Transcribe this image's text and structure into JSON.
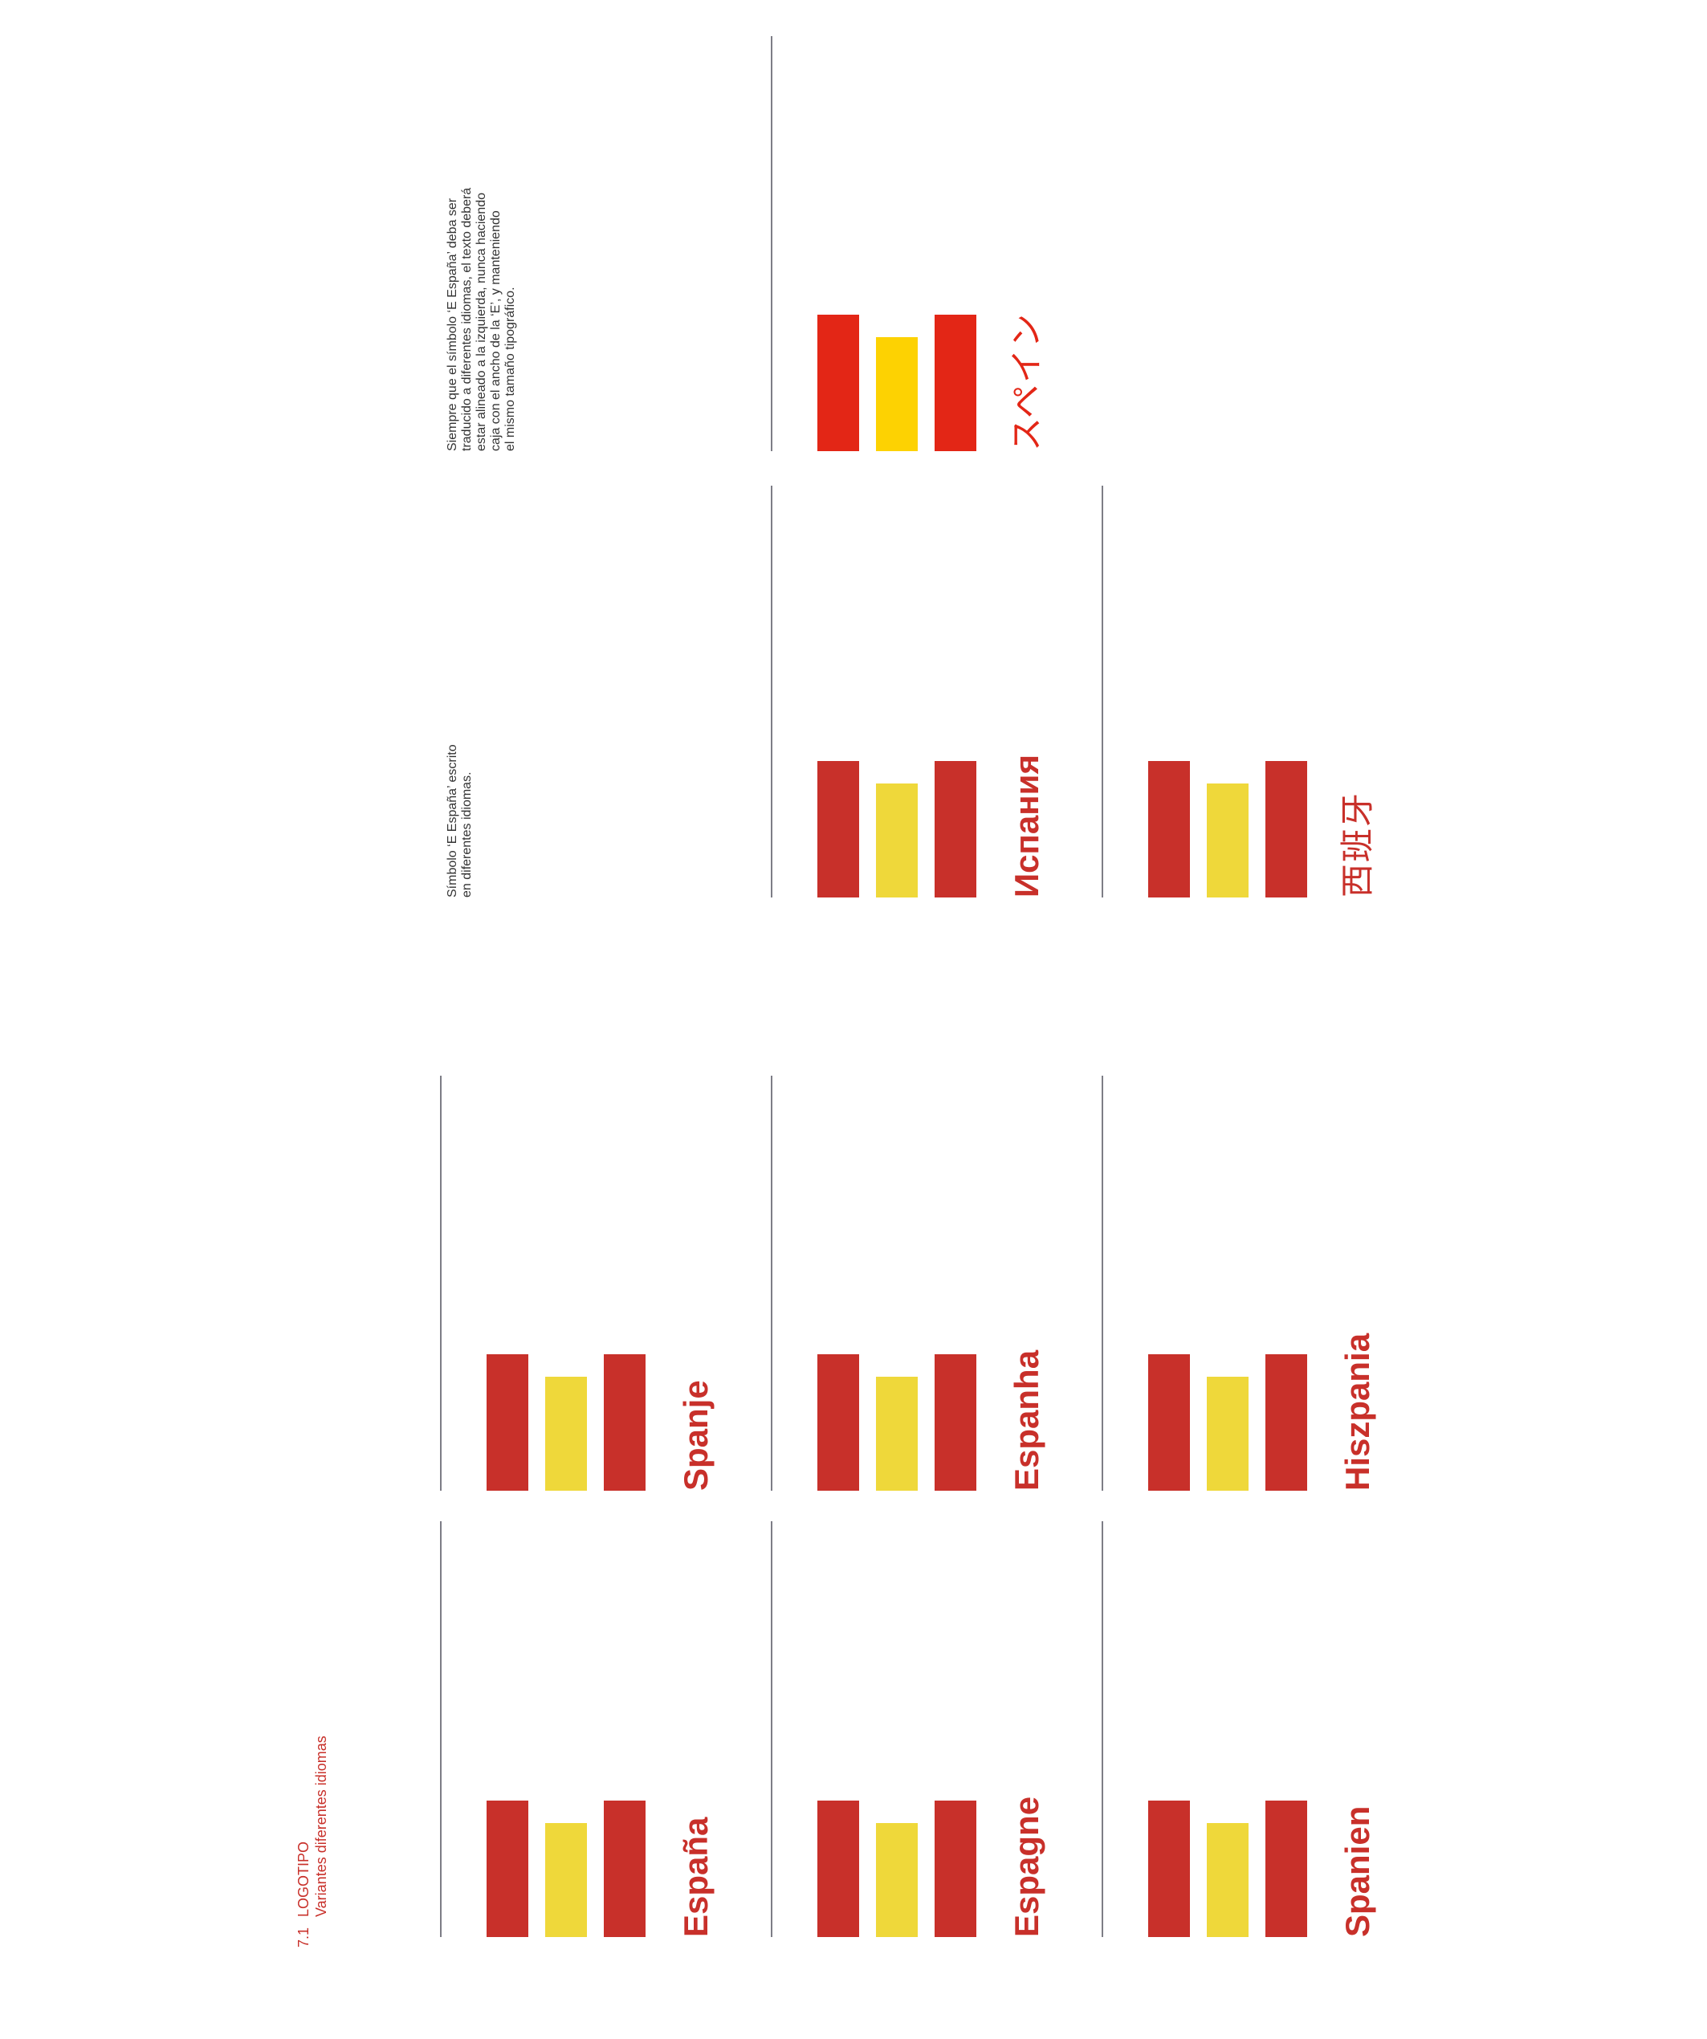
{
  "header": {
    "number": "7.1",
    "title": "LOGOTIPO",
    "subtitle": "Variantes diferentes idiomas"
  },
  "note_left": {
    "lines": [
      "Símbolo ‘E España’ escrito",
      "en diferentes idiomas."
    ]
  },
  "note_right": {
    "lines": [
      "Siempre que el símbolo ‘E España’ deba ser",
      "traducido a diferentes idiomas, el texto deberá",
      "estar alineado a la izquierda, nunca haciendo",
      "caja con el ancho de la ‘E’, y manteniendo",
      "el mismo tamaño tipográfico."
    ]
  },
  "colors": {
    "red": "#c8302a",
    "yellow": "#efd83a",
    "red_bright": "#e32616",
    "yellow_bright": "#fdd202"
  },
  "logos": [
    {
      "label": "España"
    },
    {
      "label": "Spanje"
    },
    {
      "label": "Espagne"
    },
    {
      "label": "Espanha"
    },
    {
      "label": "Испания"
    },
    {
      "label": "スペイン"
    },
    {
      "label": "Spanien"
    },
    {
      "label": "Hiszpania"
    },
    {
      "label": "西班牙"
    }
  ]
}
